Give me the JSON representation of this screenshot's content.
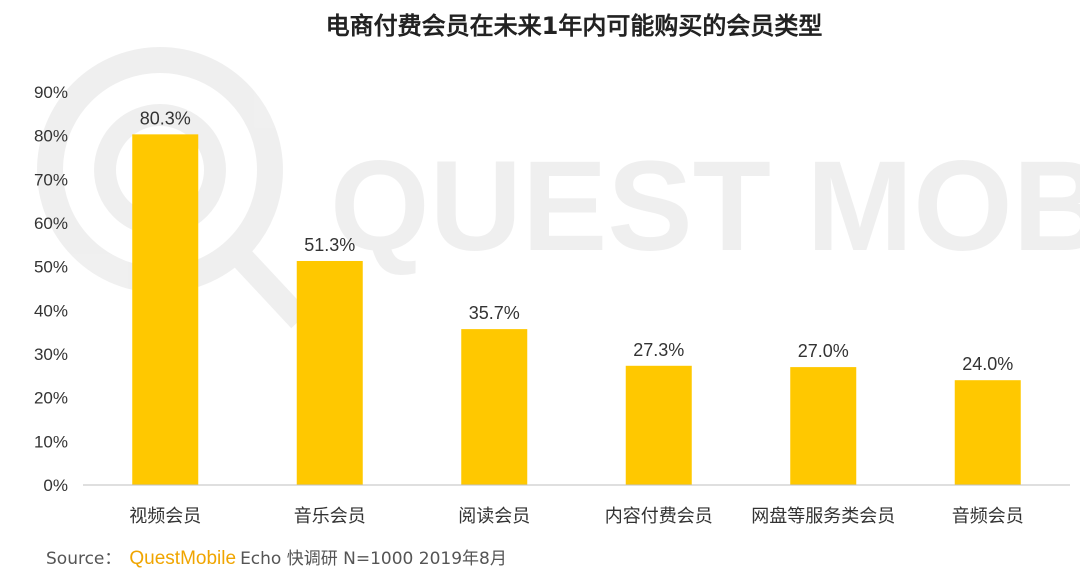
{
  "title": "电商付费会员在未来1年内可能购买的会员类型",
  "watermark": "QUEST MOBILE",
  "source": {
    "label": "Source：",
    "brand": "QuestMobile",
    "rest": "Echo 快调研 N=1000 2019年8月"
  },
  "colors": {
    "bar": "#ffc800",
    "brand": "#f0a500"
  },
  "chart_data": {
    "type": "bar",
    "title": "电商付费会员在未来1年内可能购买的会员类型",
    "categories": [
      "视频会员",
      "音乐会员",
      "阅读会员",
      "内容付费会员",
      "网盘等服务类会员",
      "音频会员"
    ],
    "values": [
      80.3,
      51.3,
      35.7,
      27.3,
      27.0,
      24.0
    ],
    "value_labels": [
      "80.3%",
      "51.3%",
      "35.7%",
      "27.3%",
      "27.0%",
      "24.0%"
    ],
    "yticks": [
      "0%",
      "10%",
      "20%",
      "30%",
      "40%",
      "50%",
      "60%",
      "70%",
      "80%",
      "90%"
    ],
    "ylim": [
      0,
      90
    ],
    "grid": false,
    "legend": "none",
    "xlabel": "",
    "ylabel": ""
  }
}
